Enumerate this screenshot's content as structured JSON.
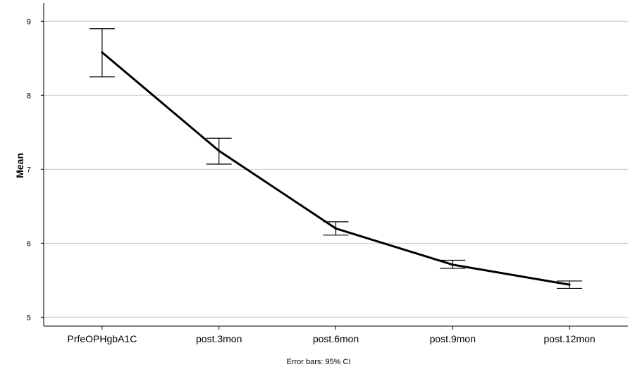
{
  "chart_data": {
    "type": "line",
    "categories": [
      "PrfeOPHgbA1C",
      "post.3mon",
      "post.6mon",
      "post.9mon",
      "post.12mon"
    ],
    "series": [
      {
        "values": [
          8.58,
          7.25,
          6.2,
          5.71,
          5.44
        ],
        "ci_low": [
          8.25,
          7.07,
          6.11,
          5.66,
          5.39
        ],
        "ci_high": [
          8.9,
          7.42,
          6.29,
          5.77,
          5.49
        ]
      }
    ],
    "ylabel": "Mean",
    "xlabel": "",
    "ylim": [
      4.88,
      9.25
    ],
    "yticks": [
      5,
      6,
      7,
      8,
      9
    ],
    "grid": true,
    "note": "Error bars: 95% CI",
    "colors": {
      "line": "#000000",
      "grid": "#c8c8c8",
      "axis": "#000000"
    }
  }
}
